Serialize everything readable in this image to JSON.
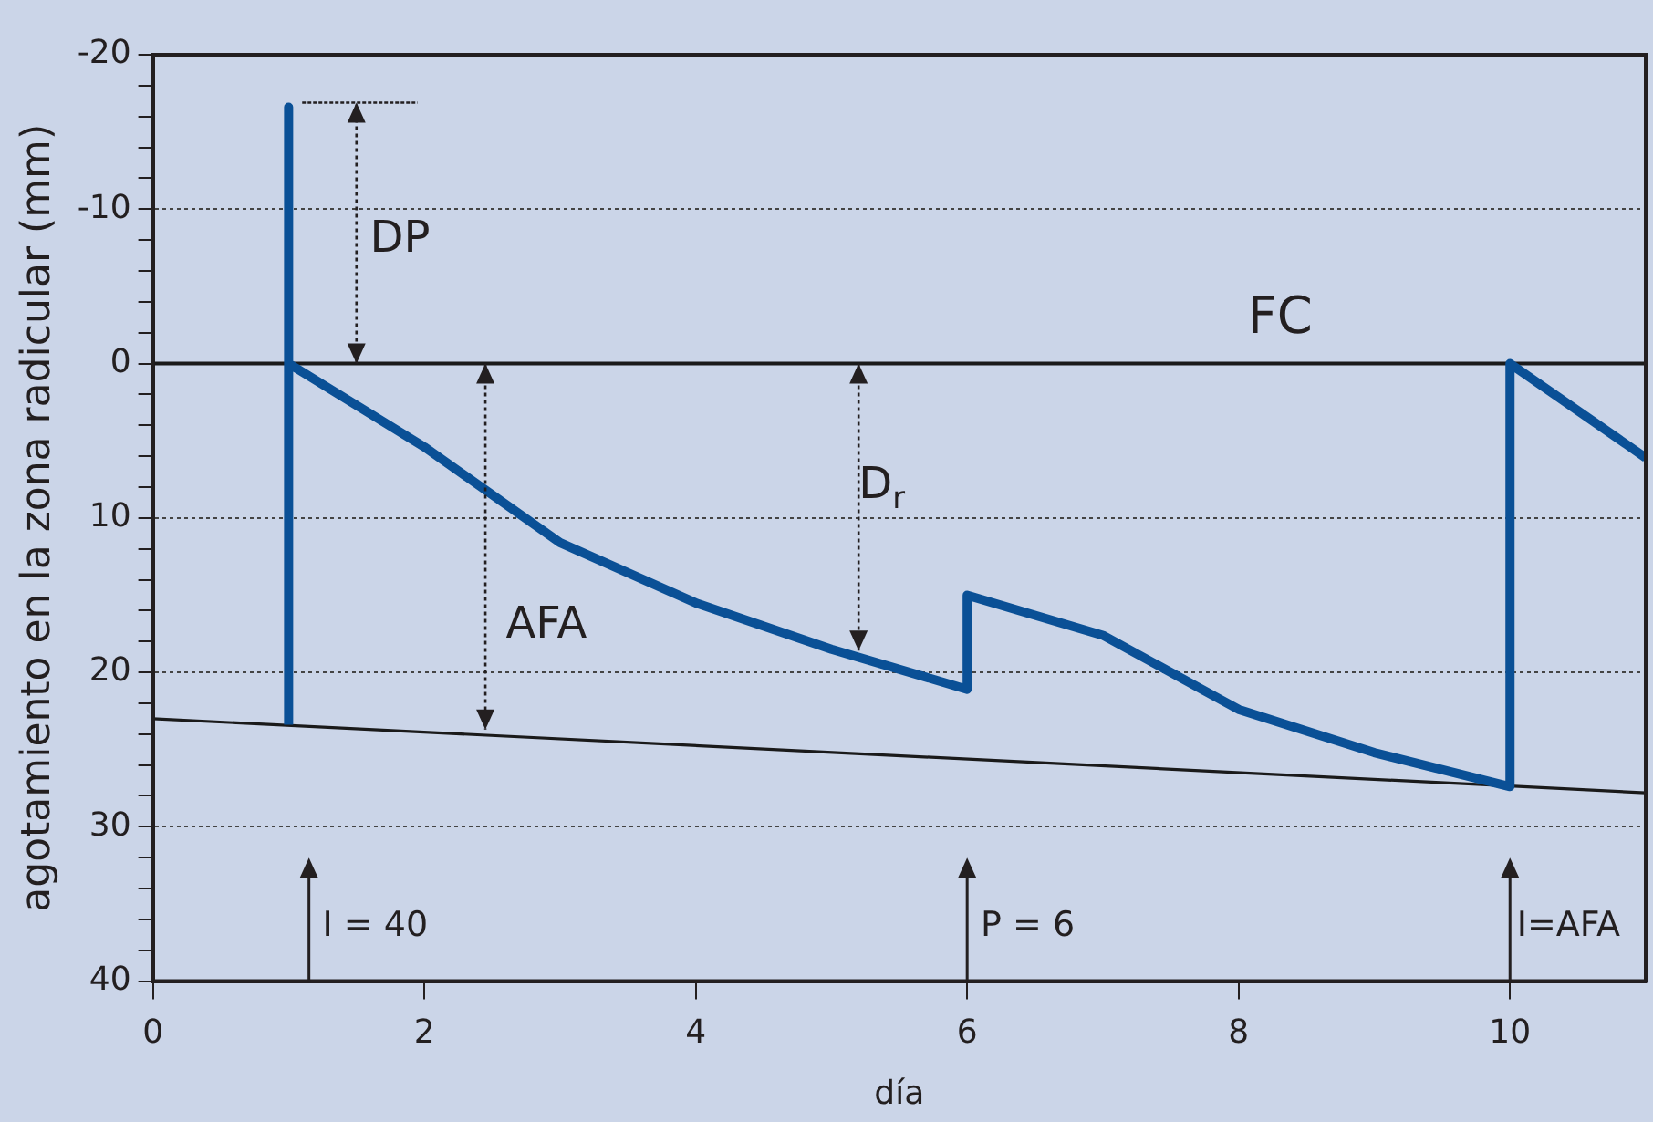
{
  "chart_data": {
    "type": "line",
    "xlabel": "día",
    "ylabel": "agotamiento en la zona radicular (mm)",
    "xlim": [
      0,
      11
    ],
    "xticks": [
      0,
      2,
      4,
      6,
      8,
      10
    ],
    "ylim": [
      40,
      -20
    ],
    "yticks": [
      -20,
      {
        "value": -18,
        "label": null
      },
      {
        "value": -16,
        "label": null
      },
      {
        "value": -14,
        "label": null
      },
      {
        "value": -12,
        "label": null
      },
      -10,
      {
        "value": -8,
        "label": null
      },
      {
        "value": -6,
        "label": null
      },
      {
        "value": -4,
        "label": null
      },
      {
        "value": -2,
        "label": null
      },
      0,
      {
        "value": 2,
        "label": null
      },
      {
        "value": 4,
        "label": null
      },
      {
        "value": 6,
        "label": null
      },
      {
        "value": 8,
        "label": null
      },
      10,
      {
        "value": 12,
        "label": null
      },
      {
        "value": 14,
        "label": null
      },
      {
        "value": 16,
        "label": null
      },
      {
        "value": 18,
        "label": null
      },
      20,
      {
        "value": 22,
        "label": null
      },
      {
        "value": 24,
        "label": null
      },
      {
        "value": 26,
        "label": null
      },
      {
        "value": 28,
        "label": null
      },
      30,
      {
        "value": 32,
        "label": null
      },
      {
        "value": 34,
        "label": null
      },
      {
        "value": 36,
        "label": null
      },
      {
        "value": 38,
        "label": null
      },
      40
    ],
    "series": [
      {
        "type": "line",
        "color": "#0a5096",
        "x": [
          1,
          1,
          1,
          2,
          3,
          4,
          5,
          6,
          6,
          7,
          8,
          9,
          10,
          10,
          11
        ],
        "values": [
          23.4,
          -16.6,
          0,
          5.4,
          11.6,
          15.5,
          18.5,
          21.1,
          15,
          17.6,
          22.4,
          25.2,
          27.4,
          0,
          6.1
        ]
      },
      {
        "type": "line",
        "color": "#1a1a1a",
        "x": [
          0,
          11
        ],
        "values": [
          23,
          27.8
        ]
      }
    ],
    "ref_lines": [
      {
        "axis": "y",
        "value": 0,
        "label": "FC",
        "color": "#1a1a1a"
      }
    ],
    "annotations": [
      "DP",
      "AFA",
      "D$_{r}$",
      "I = 40",
      "P = 6",
      "I=AFA"
    ],
    "grid": "y",
    "legend": false,
    "marker": "none",
    "line_style": "solid"
  }
}
